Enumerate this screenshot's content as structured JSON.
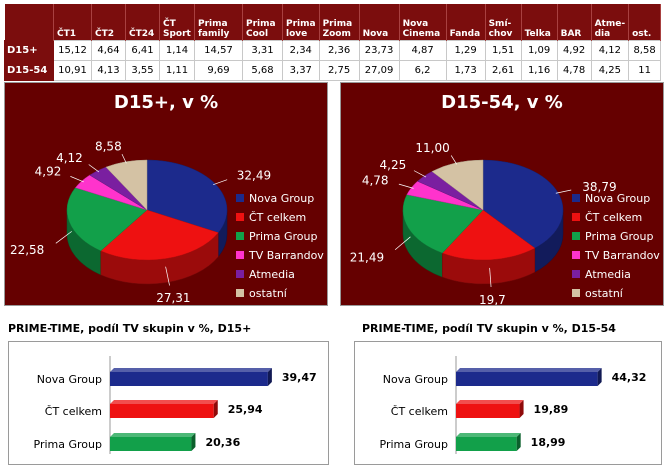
{
  "table": {
    "headers": [
      "",
      "ČT1",
      "ČT2",
      "ČT24",
      "ČT\nSport",
      "Prima\nfamily",
      "Prima\nCool",
      "Prima\nlove",
      "Prima\nZoom",
      "Nova",
      "Nova\nCinema",
      "Fanda",
      "Smí-\nchov",
      "Telka",
      "BAR",
      "Atme-\ndia",
      "ost."
    ],
    "rows": [
      {
        "label": "D15+",
        "values": [
          "15,12",
          "4,64",
          "6,41",
          "1,14",
          "14,57",
          "3,31",
          "2,34",
          "2,36",
          "23,73",
          "4,87",
          "1,29",
          "1,51",
          "1,09",
          "4,92",
          "4,12",
          "8,58"
        ]
      },
      {
        "label": "D15-54",
        "values": [
          "10,91",
          "4,13",
          "3,55",
          "1,11",
          "9,69",
          "5,68",
          "3,37",
          "2,75",
          "27,09",
          "6,2",
          "1,73",
          "2,61",
          "1,16",
          "4,78",
          "4,25",
          "11"
        ]
      }
    ]
  },
  "chart_data": [
    {
      "type": "pie",
      "title": "D15+, v %",
      "labels": [
        "Nova Group",
        "ČT celkem",
        "Prima Group",
        "TV Barrandov",
        "Atmedia",
        "ostatní"
      ],
      "values": [
        32.49,
        27.31,
        22.58,
        4.92,
        4.12,
        8.58
      ],
      "value_labels": [
        "32,49",
        "27,31",
        "22,58",
        "4,92",
        "4,12",
        "8,58"
      ],
      "colors": [
        "#1c2a8c",
        "#ee1111",
        "#12a04a",
        "#ff33cc",
        "#7a1fa0",
        "#d4c2a4"
      ],
      "legend": "right"
    },
    {
      "type": "pie",
      "title": "D15-54, v %",
      "labels": [
        "Nova Group",
        "ČT celkem",
        "Prima Group",
        "TV Barrandov",
        "Atmedia",
        "ostatní"
      ],
      "values": [
        38.79,
        19.7,
        21.49,
        4.78,
        4.25,
        11.0
      ],
      "value_labels": [
        "38,79",
        "19,7",
        "21,49",
        "4,78",
        "4,25",
        "11,00"
      ],
      "colors": [
        "#1c2a8c",
        "#ee1111",
        "#12a04a",
        "#ff33cc",
        "#7a1fa0",
        "#d4c2a4"
      ],
      "legend": "right"
    },
    {
      "type": "bar",
      "orientation": "horizontal",
      "title": "PRIME-TIME, podíl TV skupin v %, D15+",
      "categories": [
        "Nova Group",
        "ČT celkem",
        "Prima Group"
      ],
      "values": [
        39.47,
        25.94,
        20.36
      ],
      "value_labels": [
        "39,47",
        "25,94",
        "20,36"
      ],
      "colors": [
        "#1c2a8c",
        "#ee1111",
        "#12a04a"
      ],
      "xlim": [
        0,
        40
      ]
    },
    {
      "type": "bar",
      "orientation": "horizontal",
      "title": "PRIME-TIME, podíl TV skupin v %, D15-54",
      "categories": [
        "Nova Group",
        "ČT celkem",
        "Prima Group"
      ],
      "values": [
        44.32,
        19.89,
        18.99
      ],
      "value_labels": [
        "44,32",
        "19,89",
        "18,99"
      ],
      "colors": [
        "#1c2a8c",
        "#ee1111",
        "#12a04a"
      ],
      "xlim": [
        0,
        46
      ]
    }
  ]
}
